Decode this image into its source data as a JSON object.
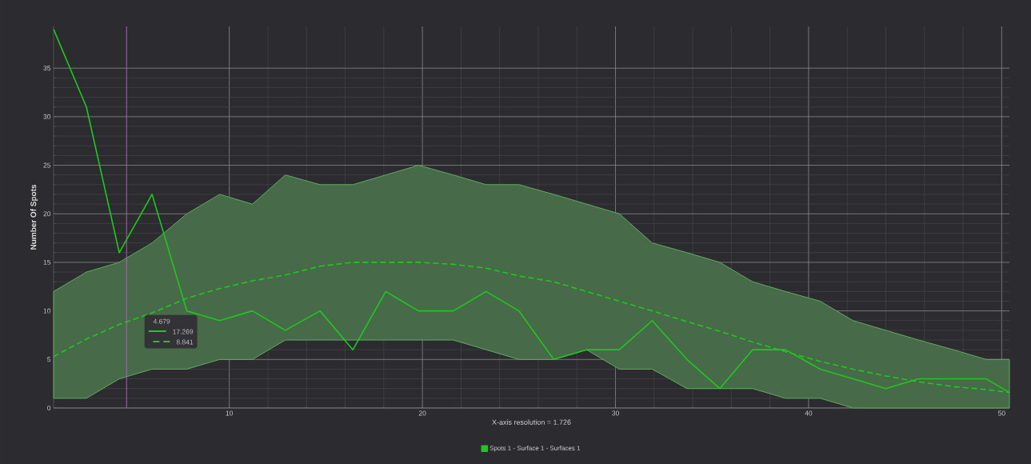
{
  "chart_data": {
    "type": "line",
    "ylabel": "Number Of Spots",
    "xlabel": "X-axis resolution = 1.726",
    "x": [
      0.9,
      2.6,
      4.3,
      6.0,
      7.8,
      9.5,
      11.2,
      12.9,
      14.7,
      16.4,
      18.1,
      19.8,
      21.6,
      23.3,
      25.0,
      26.8,
      28.5,
      30.2,
      31.9,
      33.7,
      35.4,
      37.1,
      38.8,
      40.6,
      42.3,
      44.0,
      45.7,
      47.5,
      49.2,
      50.4
    ],
    "series": [
      {
        "name": "Spots 1 - Surface 1 - Surfaces 1",
        "color": "#1ec81e",
        "line_style": "solid",
        "values": [
          39,
          31,
          16,
          22,
          10,
          9,
          10,
          8,
          10,
          6,
          12,
          10,
          10,
          12,
          10,
          5,
          6,
          6,
          9,
          5,
          2,
          6,
          6,
          4,
          3,
          2,
          3,
          3,
          3,
          1.6
        ]
      },
      {
        "color": "#1ec81e",
        "line_style": "dashed",
        "values": [
          5.3,
          7.1,
          8.6,
          9.8,
          11.3,
          12.3,
          13.1,
          13.7,
          14.6,
          15,
          15,
          15,
          14.8,
          14.4,
          13.6,
          13,
          12,
          11,
          10,
          8.9,
          7.9,
          6.8,
          5.8,
          4.8,
          4.0,
          3.3,
          2.7,
          2.2,
          1.9,
          1.6
        ],
        "lower": [
          1,
          1,
          3,
          4,
          4,
          5,
          5,
          7,
          7,
          7,
          7,
          7,
          7,
          6,
          5,
          5,
          6,
          4,
          4,
          2,
          2,
          2,
          1,
          1,
          0,
          0,
          0,
          0,
          0,
          0
        ],
        "upper": [
          12,
          14,
          15,
          17,
          20,
          22,
          21,
          24,
          23,
          23,
          24,
          25,
          24,
          23,
          23,
          22,
          21,
          20,
          17,
          16,
          15,
          13,
          12,
          11,
          9,
          8,
          7,
          6,
          5,
          5
        ]
      }
    ],
    "xlim": [
      0.9,
      50.4
    ],
    "ylim": [
      0,
      39.3
    ],
    "xticks": [
      10,
      20,
      30,
      40,
      50
    ],
    "yticks": [
      0,
      5,
      10,
      15,
      20,
      25,
      30,
      35
    ],
    "ref_lines": [
      {
        "axis": "x",
        "value": 4.679,
        "color": "#9a6ea0"
      }
    ],
    "annotations": [
      "4.679",
      "17.269",
      "8.841"
    ],
    "grid": true,
    "legend": "bottom",
    "marker": "none"
  }
}
